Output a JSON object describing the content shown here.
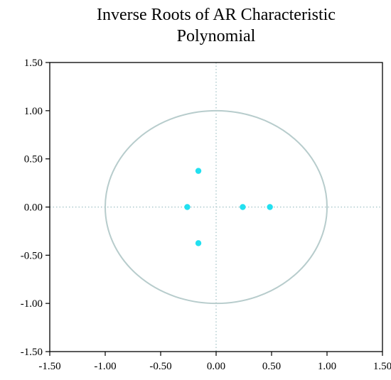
{
  "chart_data": {
    "type": "scatter",
    "title_lines": [
      "Inverse Roots of AR Characteristic",
      "Polynomial"
    ],
    "xlim": [
      -1.5,
      1.5
    ],
    "ylim": [
      -1.5,
      1.5
    ],
    "xticks": [
      "-1.50",
      "-1.00",
      "-0.50",
      "0.00",
      "0.50",
      "1.00",
      "1.50"
    ],
    "yticks": [
      "1.50",
      "1.00",
      "0.50",
      "0.00",
      "-0.50",
      "-1.00",
      "-1.50"
    ],
    "unit_circle_radius": 1.0,
    "reference_lines": {
      "x": 0,
      "y": 0,
      "style": "dotted"
    },
    "points": [
      {
        "x": -0.16,
        "y": 0.375
      },
      {
        "x": -0.26,
        "y": 0.0
      },
      {
        "x": -0.16,
        "y": -0.375
      },
      {
        "x": 0.24,
        "y": 0.0
      },
      {
        "x": 0.485,
        "y": 0.0
      }
    ],
    "colors": {
      "points": "#22e0f0",
      "circle": "#b7cccc",
      "reference": "#9fc0c4",
      "axes": "#000000"
    },
    "grid": false
  }
}
